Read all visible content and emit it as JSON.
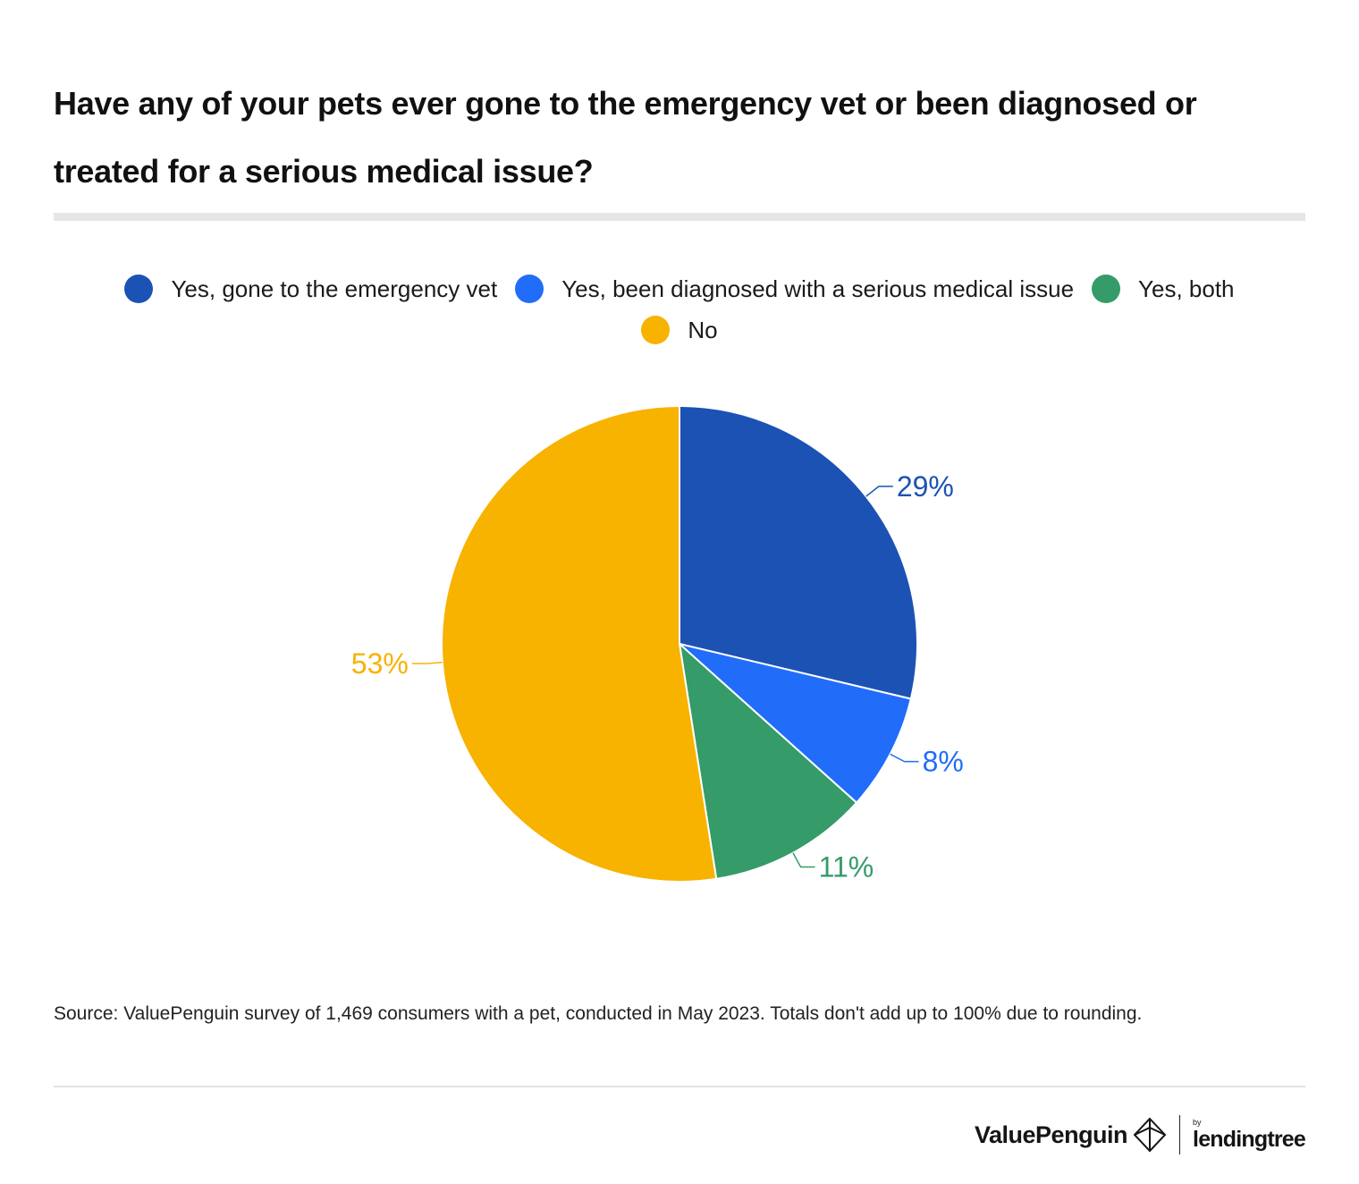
{
  "title": "Have any of your pets ever gone to the emergency vet or been diagnosed or treated for a serious medical issue?",
  "source": "Source: ValuePenguin survey of 1,469 consumers with a pet, conducted in May 2023. Totals don't add up to 100% due to rounding.",
  "brand": {
    "name": "ValuePenguin",
    "by": "by",
    "partner": "lendingtree"
  },
  "chart_data": {
    "type": "pie",
    "title": "Have any of your pets ever gone to the emergency vet or been diagnosed or treated for a serious medical issue?",
    "legend_position": "top",
    "slices": [
      {
        "label": "Yes, gone to the emergency vet",
        "value": 29,
        "value_label": "29%",
        "color": "#1c52b4"
      },
      {
        "label": "Yes, been diagnosed with a serious medical issue",
        "value": 8,
        "value_label": "8%",
        "color": "#216dfa"
      },
      {
        "label": "Yes, both",
        "value": 11,
        "value_label": "11%",
        "color": "#359b69"
      },
      {
        "label": "No",
        "value": 53,
        "value_label": "53%",
        "color": "#f8b200"
      }
    ]
  }
}
